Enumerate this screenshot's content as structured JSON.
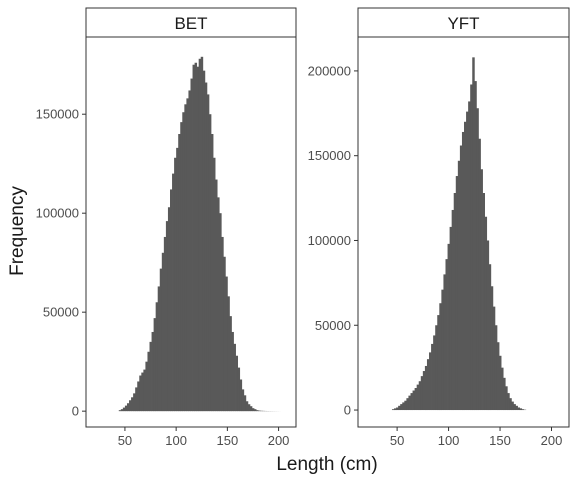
{
  "chart_data": {
    "type": "bar",
    "xlabel": "Length (cm)",
    "ylabel": "Frequency",
    "bar_color": "#595959",
    "frame_color": "#333333",
    "grid": false,
    "x_ticks": [
      50,
      100,
      150,
      200
    ],
    "xlim": [
      12,
      217
    ],
    "panels": [
      {
        "title": "BET",
        "ylim": [
          -8000,
          189000
        ],
        "y_ticks": [
          0,
          50000,
          100000,
          150000
        ],
        "y_tick_labels": [
          "0",
          "50000",
          "100000",
          "150000"
        ],
        "bin_width": 2,
        "x": [
          45,
          47,
          49,
          51,
          53,
          55,
          57,
          59,
          61,
          63,
          65,
          67,
          69,
          71,
          73,
          75,
          77,
          79,
          81,
          83,
          85,
          87,
          89,
          91,
          93,
          95,
          97,
          99,
          101,
          103,
          105,
          107,
          109,
          111,
          113,
          115,
          117,
          119,
          121,
          123,
          125,
          127,
          129,
          131,
          133,
          135,
          137,
          139,
          141,
          143,
          145,
          147,
          149,
          151,
          153,
          155,
          157,
          159,
          161,
          163,
          165,
          167,
          169,
          171,
          173,
          175,
          177,
          179,
          181,
          183,
          185,
          187,
          189,
          191,
          193,
          195,
          197,
          199,
          201
        ],
        "values": [
          500,
          1000,
          1800,
          2800,
          4000,
          5500,
          7000,
          9000,
          12000,
          15000,
          18000,
          19500,
          21000,
          25000,
          30000,
          35000,
          40000,
          47000,
          55000,
          63000,
          72000,
          80000,
          88000,
          96000,
          103000,
          112000,
          120000,
          128000,
          133000,
          140000,
          146000,
          151000,
          155000,
          158000,
          162000,
          168000,
          175000,
          176000,
          174000,
          178000,
          179000,
          172000,
          166000,
          160000,
          150000,
          140000,
          128000,
          117000,
          108000,
          100000,
          88000,
          78000,
          68000,
          58000,
          48000,
          40000,
          34000,
          28000,
          22000,
          16000,
          11000,
          8000,
          5000,
          3500,
          2500,
          1500,
          1000,
          500,
          300,
          200,
          150,
          100,
          80,
          60,
          50,
          40,
          30,
          20,
          10
        ]
      },
      {
        "title": "YFT",
        "ylim": [
          -10000,
          220000
        ],
        "y_ticks": [
          0,
          50000,
          100000,
          150000,
          200000
        ],
        "y_tick_labels": [
          "0",
          "50000",
          "100000",
          "150000",
          "200000"
        ],
        "bin_width": 2,
        "x": [
          46,
          48,
          50,
          52,
          54,
          56,
          58,
          60,
          62,
          64,
          66,
          68,
          70,
          72,
          74,
          76,
          78,
          80,
          82,
          84,
          86,
          88,
          90,
          92,
          94,
          96,
          98,
          100,
          102,
          104,
          106,
          108,
          110,
          112,
          114,
          116,
          118,
          120,
          122,
          124,
          126,
          128,
          130,
          132,
          134,
          136,
          138,
          140,
          142,
          144,
          146,
          148,
          150,
          152,
          154,
          156,
          158,
          160,
          162,
          164,
          166,
          168,
          170,
          172,
          174
        ],
        "values": [
          500,
          1000,
          1500,
          2500,
          3500,
          4500,
          5500,
          7000,
          8500,
          10000,
          11500,
          13000,
          15000,
          17000,
          20000,
          23000,
          26000,
          30000,
          34000,
          39000,
          44000,
          50000,
          56000,
          63000,
          71000,
          80000,
          89000,
          98000,
          108000,
          118000,
          128000,
          138000,
          147000,
          156000,
          164000,
          170000,
          176000,
          182000,
          192000,
          208000,
          194000,
          178000,
          160000,
          142000,
          128000,
          114000,
          100000,
          86000,
          73000,
          61000,
          50000,
          40000,
          32000,
          25000,
          19000,
          14000,
          10000,
          7000,
          5000,
          3500,
          2500,
          1500,
          1000,
          500,
          200
        ]
      }
    ]
  }
}
